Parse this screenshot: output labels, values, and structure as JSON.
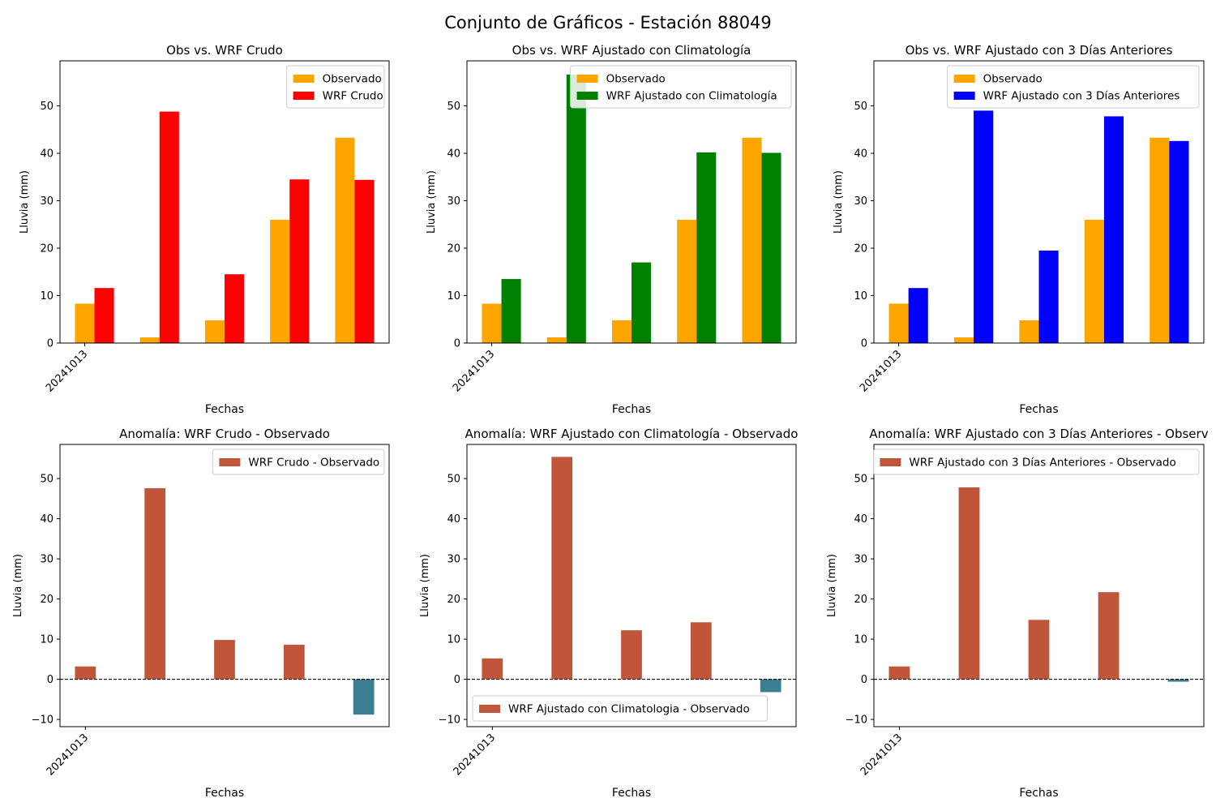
{
  "suptitle": "Conjunto de Gráficos - Estación 88049",
  "colors": {
    "observed": "#FFA500",
    "wrf_raw": "#FF0000",
    "wrf_clim": "#008000",
    "wrf_3d": "#0000FF",
    "anomaly_positive": "#C1553A",
    "anomaly_negative": "#3B7D91"
  },
  "chart_data": [
    {
      "type": "bar",
      "title": "Obs vs. WRF Crudo",
      "xlabel": "Fechas",
      "ylabel": "Lluvia (mm)",
      "x_tick_labels": [
        "20241013"
      ],
      "ylim": [
        0,
        59.5
      ],
      "yticks": [
        0,
        10,
        20,
        30,
        40,
        50
      ],
      "legend": "top-right",
      "series": [
        {
          "name": "Observado",
          "color_key": "observed",
          "values": [
            8.3,
            1.2,
            4.8,
            26.0,
            43.3
          ]
        },
        {
          "name": "WRF Crudo",
          "color_key": "wrf_raw",
          "values": [
            11.6,
            48.8,
            14.5,
            34.5,
            34.4
          ]
        }
      ]
    },
    {
      "type": "bar",
      "title": "Obs vs. WRF Ajustado con Climatología",
      "xlabel": "Fechas",
      "ylabel": "Lluvia (mm)",
      "x_tick_labels": [
        "20241013"
      ],
      "ylim": [
        0,
        59.5
      ],
      "yticks": [
        0,
        10,
        20,
        30,
        40,
        50
      ],
      "legend": "top-right",
      "series": [
        {
          "name": "Observado",
          "color_key": "observed",
          "values": [
            8.3,
            1.2,
            4.8,
            26.0,
            43.3
          ]
        },
        {
          "name": "WRF Ajustado con Climatología",
          "color_key": "wrf_clim",
          "values": [
            13.5,
            56.6,
            17.0,
            40.2,
            40.1
          ]
        }
      ]
    },
    {
      "type": "bar",
      "title": "Obs vs. WRF Ajustado con 3 Días Anteriores",
      "xlabel": "Fechas",
      "ylabel": "Lluvia (mm)",
      "x_tick_labels": [
        "20241013"
      ],
      "ylim": [
        0,
        59.5
      ],
      "yticks": [
        0,
        10,
        20,
        30,
        40,
        50
      ],
      "legend": "top-right",
      "series": [
        {
          "name": "Observado",
          "color_key": "observed",
          "values": [
            8.3,
            1.2,
            4.8,
            26.0,
            43.3
          ]
        },
        {
          "name": "WRF Ajustado con 3 Días Anteriores",
          "color_key": "wrf_3d",
          "values": [
            11.6,
            49.0,
            19.5,
            47.8,
            42.6
          ]
        }
      ]
    },
    {
      "type": "bar",
      "title": "Anomalía: WRF Crudo - Observado",
      "xlabel": "Fechas",
      "ylabel": "Lluvia (mm)",
      "x_tick_labels": [
        "20241013"
      ],
      "ylim": [
        -11.8,
        58.5
      ],
      "yticks": [
        -10,
        0,
        10,
        20,
        30,
        40,
        50
      ],
      "legend": "top-right",
      "zero_line": true,
      "series": [
        {
          "name": "WRF Crudo - Observado",
          "values": [
            3.2,
            47.6,
            9.8,
            8.6,
            -8.8
          ]
        }
      ]
    },
    {
      "type": "bar",
      "title": "Anomalía: WRF Ajustado con Climatología - Observado",
      "xlabel": "Fechas",
      "ylabel": "Lluvia (mm)",
      "x_tick_labels": [
        "20241013"
      ],
      "ylim": [
        -11.8,
        58.5
      ],
      "yticks": [
        -10,
        0,
        10,
        20,
        30,
        40,
        50
      ],
      "legend": "bottom-left",
      "zero_line": true,
      "series": [
        {
          "name": "WRF Ajustado con Climatologia - Observado",
          "values": [
            5.2,
            55.4,
            12.2,
            14.2,
            -3.2
          ]
        }
      ]
    },
    {
      "type": "bar",
      "title": "Anomalía: WRF Ajustado con 3 Días Anteriores - Observ",
      "xlabel": "Fechas",
      "ylabel": "Lluvia (mm)",
      "x_tick_labels": [
        "20241013"
      ],
      "ylim": [
        -11.8,
        58.5
      ],
      "yticks": [
        -10,
        0,
        10,
        20,
        30,
        40,
        50
      ],
      "legend": "top-right",
      "zero_line": true,
      "series": [
        {
          "name": "WRF Ajustado con 3 Días Anteriores - Observado",
          "values": [
            3.2,
            47.8,
            14.8,
            21.7,
            -0.6
          ]
        }
      ]
    }
  ]
}
